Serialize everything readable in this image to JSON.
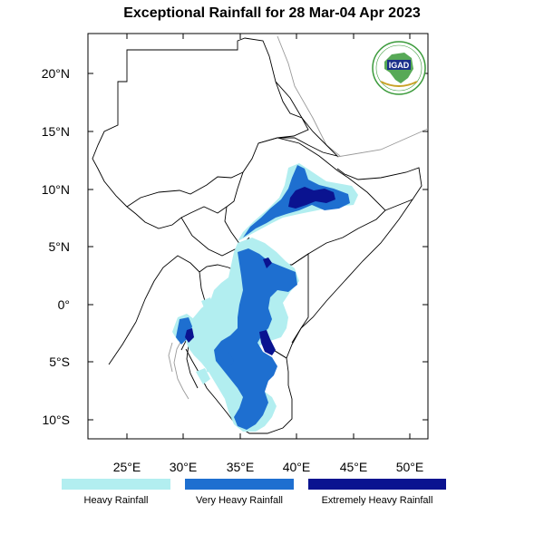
{
  "title": "Exceptional Rainfall for 28 Mar-04 Apr 2023",
  "logo": {
    "text": "IGAD"
  },
  "axes": {
    "lon_ticks": [
      "25°E",
      "30°E",
      "35°E",
      "40°E",
      "45°E",
      "50°E"
    ],
    "lat_ticks": [
      "20°N",
      "15°N",
      "10°N",
      "5°N",
      "0°",
      "5°S",
      "10°S"
    ],
    "lon_range": [
      21.5,
      51.5
    ],
    "lat_range": [
      -11.8,
      23.3
    ]
  },
  "legend": [
    {
      "label": "Heavy Rainfall",
      "color": "#b2eef0"
    },
    {
      "label": "Very Heavy Rainfall",
      "color": "#1e6fd0"
    },
    {
      "label": "Extremely Heavy Rainfall",
      "color": "#0a1390"
    }
  ]
}
